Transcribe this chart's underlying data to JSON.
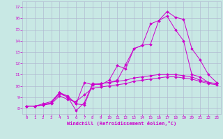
{
  "xlabel": "Windchill (Refroidissement éolien,°C)",
  "bg_color": "#c8e8e4",
  "line_color": "#cc00cc",
  "grid_color": "#b0b8d0",
  "xlim": [
    -0.5,
    23.5
  ],
  "ylim": [
    7.5,
    17.5
  ],
  "xticks": [
    0,
    1,
    2,
    3,
    4,
    5,
    6,
    7,
    8,
    9,
    10,
    11,
    12,
    13,
    14,
    15,
    16,
    17,
    18,
    19,
    20,
    21,
    22,
    23
  ],
  "yticks": [
    8,
    9,
    10,
    11,
    12,
    13,
    14,
    15,
    16,
    17
  ],
  "series": [
    {
      "x": [
        0,
        1,
        2,
        3,
        4,
        5,
        6,
        7,
        8,
        9,
        10,
        11,
        12,
        13,
        14,
        15,
        16,
        17,
        18,
        19,
        20,
        21,
        22,
        23
      ],
      "y": [
        8.2,
        8.2,
        8.3,
        8.5,
        9.4,
        9.1,
        8.4,
        10.3,
        10.1,
        10.2,
        10.3,
        10.5,
        11.9,
        13.3,
        13.6,
        15.5,
        15.8,
        16.2,
        15.0,
        14.0,
        11.0,
        10.8,
        10.3,
        10.2
      ]
    },
    {
      "x": [
        0,
        1,
        2,
        3,
        4,
        5,
        6,
        7,
        8,
        9,
        10,
        11,
        12,
        13,
        14,
        15,
        16,
        17,
        18,
        19,
        20,
        21,
        22,
        23
      ],
      "y": [
        8.2,
        8.2,
        8.4,
        8.6,
        9.4,
        9.0,
        7.8,
        8.5,
        10.2,
        10.1,
        10.5,
        11.8,
        11.5,
        13.3,
        13.6,
        13.7,
        15.8,
        16.6,
        16.1,
        15.9,
        13.3,
        12.3,
        11.0,
        10.3
      ]
    },
    {
      "x": [
        0,
        1,
        2,
        3,
        4,
        5,
        6,
        7,
        8,
        9,
        10,
        11,
        12,
        13,
        14,
        15,
        16,
        17,
        18,
        19,
        20,
        21,
        22,
        23
      ],
      "y": [
        8.2,
        8.2,
        8.3,
        8.5,
        9.3,
        9.0,
        8.4,
        8.3,
        10.1,
        10.2,
        10.3,
        10.4,
        10.5,
        10.7,
        10.8,
        10.9,
        11.0,
        11.0,
        11.0,
        10.9,
        10.8,
        10.5,
        10.3,
        10.2
      ]
    },
    {
      "x": [
        0,
        1,
        2,
        3,
        4,
        5,
        6,
        7,
        8,
        9,
        10,
        11,
        12,
        13,
        14,
        15,
        16,
        17,
        18,
        19,
        20,
        21,
        22,
        23
      ],
      "y": [
        8.2,
        8.2,
        8.3,
        8.4,
        9.1,
        8.8,
        8.6,
        9.2,
        9.8,
        9.9,
        10.0,
        10.1,
        10.2,
        10.4,
        10.5,
        10.6,
        10.7,
        10.8,
        10.8,
        10.7,
        10.6,
        10.4,
        10.2,
        10.1
      ]
    }
  ]
}
